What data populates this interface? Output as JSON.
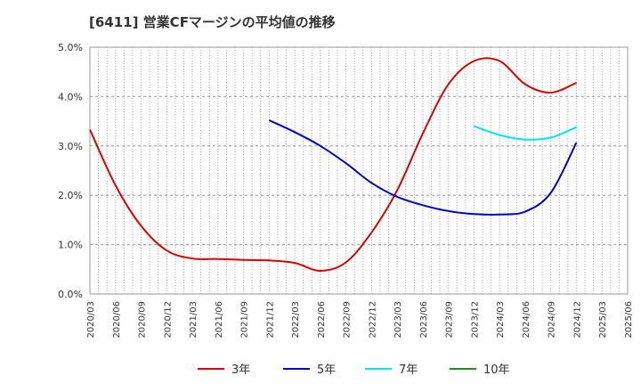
{
  "title": "[6411]  営業CFマージンの平均値の推移",
  "chart_data": {
    "type": "line",
    "title": "[6411]  営業CFマージンの平均値の推移",
    "xlabel": "",
    "ylabel": "",
    "x_ticks": [
      "2020/03",
      "2020/06",
      "2020/09",
      "2020/12",
      "2021/03",
      "2021/06",
      "2021/09",
      "2021/12",
      "2022/03",
      "2022/06",
      "2022/09",
      "2022/12",
      "2023/03",
      "2023/06",
      "2023/09",
      "2023/12",
      "2024/03",
      "2024/06",
      "2024/09",
      "2024/12",
      "2025/03",
      "2025/06"
    ],
    "y_ticks": [
      "0.0%",
      "1.0%",
      "2.0%",
      "3.0%",
      "4.0%",
      "5.0%"
    ],
    "ylim": [
      0,
      5
    ],
    "grid": true,
    "legend_position": "bottom",
    "series": [
      {
        "name": "3年",
        "color": "#dd0000",
        "x": [
          "2020/03",
          "2020/06",
          "2020/09",
          "2020/12",
          "2021/03",
          "2021/06",
          "2021/09",
          "2021/12",
          "2022/03",
          "2022/06",
          "2022/09",
          "2022/12",
          "2023/03",
          "2023/06",
          "2023/09",
          "2023/12",
          "2024/03",
          "2024/06",
          "2024/09",
          "2024/12"
        ],
        "values": [
          3.33,
          2.2,
          1.38,
          0.88,
          0.72,
          0.71,
          0.69,
          0.68,
          0.63,
          0.47,
          0.64,
          1.25,
          2.1,
          3.25,
          4.25,
          4.72,
          4.72,
          4.25,
          4.08,
          4.28
        ]
      },
      {
        "name": "5年",
        "color": "#0000cc",
        "x": [
          "2021/12",
          "2022/03",
          "2022/06",
          "2022/09",
          "2022/12",
          "2023/03",
          "2023/06",
          "2023/09",
          "2023/12",
          "2024/03",
          "2024/06",
          "2024/09",
          "2024/12"
        ],
        "values": [
          3.52,
          3.28,
          3.0,
          2.65,
          2.25,
          1.97,
          1.8,
          1.68,
          1.62,
          1.61,
          1.67,
          2.05,
          3.07
        ]
      },
      {
        "name": "7年",
        "color": "#00e5ee",
        "x": [
          "2023/12",
          "2024/03",
          "2024/06",
          "2024/09",
          "2024/12"
        ],
        "values": [
          3.4,
          3.22,
          3.13,
          3.17,
          3.38
        ]
      },
      {
        "name": "10年",
        "color": "#228b22",
        "x": [],
        "values": []
      }
    ]
  }
}
